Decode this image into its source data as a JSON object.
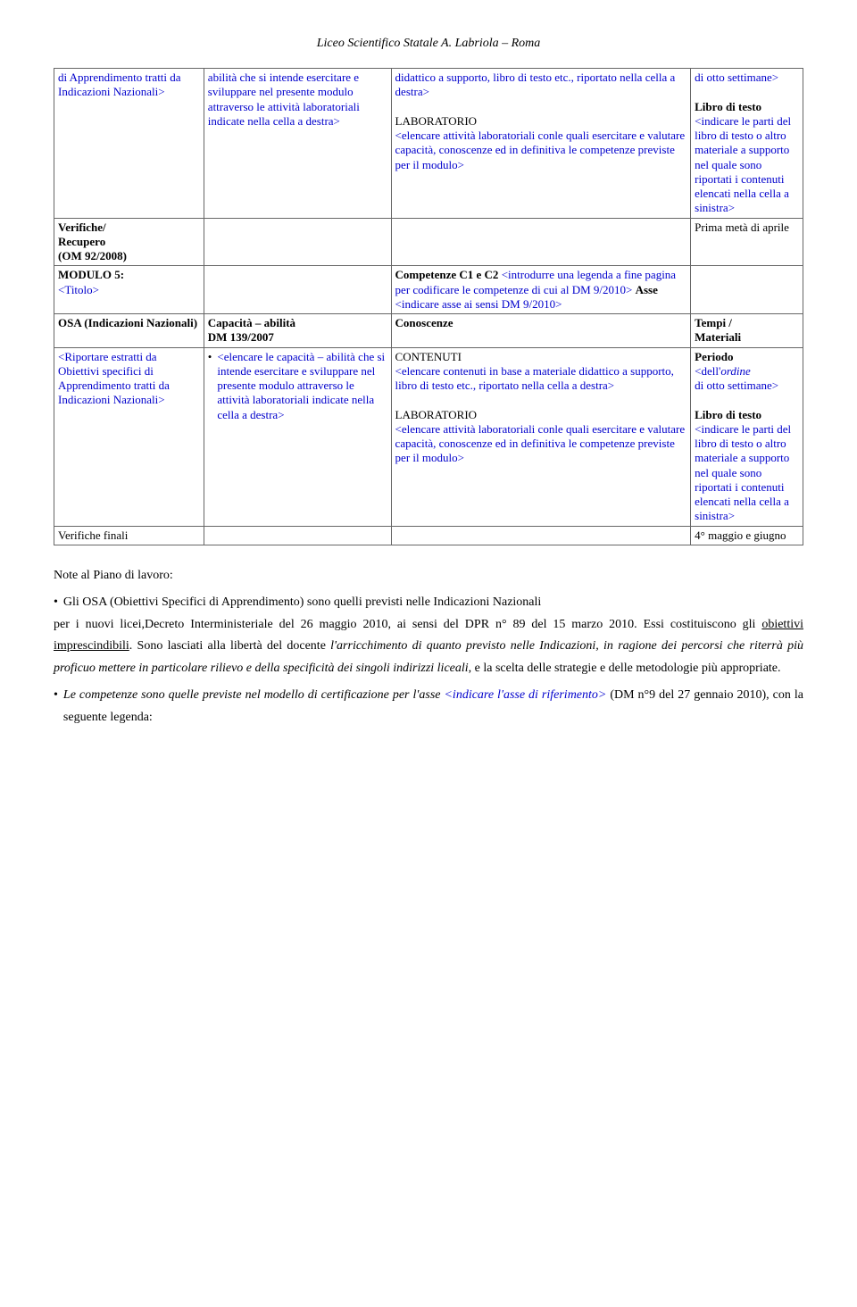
{
  "header": "Liceo Scientifico Statale A. Labriola – Roma",
  "rows": {
    "r1c1": "di Apprendimento tratti da Indicazioni Nazionali>",
    "r1c2a": "abilità che si intende esercitare e sviluppare nel presente modulo attraverso le attività laboratoriali indicate nella cella a destra>",
    "r1c3a": "didattico a supporto, libro di testo etc., riportato nella cella a destra>",
    "r1c3b": "LABORATORIO",
    "r1c3c": "<elencare attività laboratoriali conle quali esercitare e valutare capacità, conoscenze ed in definitiva le competenze previste per il modulo>",
    "r1c4a": "di otto settimane>",
    "r1c4b": "Libro di testo",
    "r1c4c": "<indicare le parti del libro di testo o altro materiale a supporto nel quale sono riportati i contenuti elencati nella cella a sinistra>",
    "r2c1a": "Verifiche/",
    "r2c1b": "Recupero",
    "r2c1c": "(OM 92/2008)",
    "r2c4": "Prima metà di aprile",
    "r3c1a": "MODULO 5:",
    "r3c1b": "<Titolo>",
    "r3c3a": "Competenze C1 e C2 ",
    "r3c3b": "<introdurre una legenda a fine pagina per codificare le competenze di cui al DM 9/2010> ",
    "r3c3c": "Asse",
    "r3c3d": "<indicare asse ai sensi DM 9/2010>",
    "r4c1": "OSA (Indicazioni Nazionali)",
    "r4c2a": "Capacità – abilità",
    "r4c2b": "DM 139/2007",
    "r4c3": "Conoscenze",
    "r4c4a": "Tempi /",
    "r4c4b": "Materiali",
    "r5c1": "<Riportare estratti da Obiettivi specifici di Apprendimento tratti da Indicazioni Nazionali>",
    "r5c2a": "<elencare le capacità – abilità che si intende esercitare e sviluppare nel presente modulo attraverso le attività laboratoriali indicate nella cella a destra>",
    "r5c3a": "CONTENUTI",
    "r5c3b": "<elencare contenuti in base a materiale didattico a supporto, libro di testo etc., riportato nella cella a destra>",
    "r5c3c": "LABORATORIO",
    "r5c3d": "<elencare attività laboratoriali conle quali esercitare e valutare capacità, conoscenze ed in definitiva le competenze previste per il modulo>",
    "r5c4a": "Periodo",
    "r5c4b": "<dell'",
    "r5c4c": "ordine",
    "r5c4d": "di otto settimane>",
    "r5c4e": "Libro di testo",
    "r5c4f": "<indicare le parti del libro di testo o altro materiale a supporto nel quale sono riportati i contenuti elencati nella cella a sinistra>",
    "r6c1": "Verifiche finali",
    "r6c4": "4° maggio e giugno"
  },
  "notes": {
    "title": "Note al Piano di lavoro:",
    "b1a": "Gli OSA (Obiettivi Specifici di Apprendimento) sono quelli previsti nelle Indicazioni Nazionali",
    "b1b": "per i nuovi licei,Decreto Interministeriale del 26 maggio 2010,  ai sensi del DPR n° 89 del 15 marzo 2010. Essi costituiscono gli ",
    "b1u": "obiettivi imprescindibili",
    "b1c": ". Sono lasciati alla libertà del docente ",
    "b1i": "l'arricchimento di quanto previsto nelle Indicazioni, in ragione dei percorsi che riterrà più proficuo mettere in particolare rilievo e della specificità dei singoli indirizzi liceali",
    "b1d": ", e la scelta delle strategie e delle metodologie più appropriate.",
    "b2i": "Le competenze sono quelle previste nel modello di certificazione per l'asse ",
    "b2blue": "<indicare l'asse di riferimento>",
    "b2c": " (DM n°9 del 27 gennaio 2010),  con la seguente legenda:"
  },
  "colors": {
    "blue": "#0000cc",
    "border": "#666666"
  }
}
